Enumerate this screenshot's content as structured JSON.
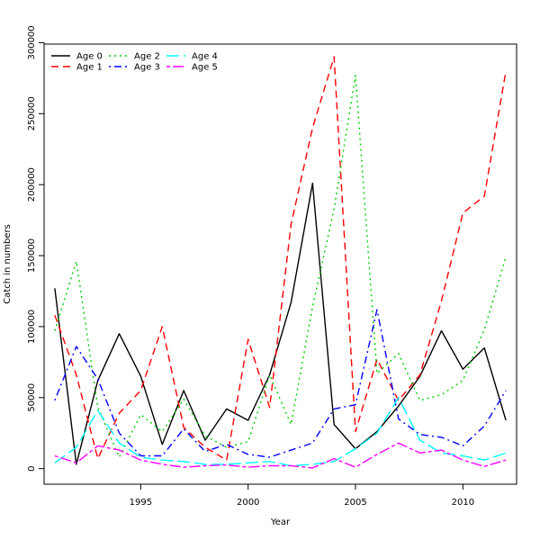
{
  "chart_data": {
    "type": "line",
    "title": "",
    "xlabel": "Year",
    "ylabel": "Catch in numbers",
    "xlim": [
      1990.5,
      2012.5
    ],
    "ylim": [
      -11000,
      299000
    ],
    "x_ticks": [
      1995,
      2000,
      2005,
      2010
    ],
    "y_ticks": [
      0,
      50000,
      100000,
      150000,
      200000,
      250000,
      300000
    ],
    "x_tick_labels": [
      "1995",
      "2000",
      "2005",
      "2010"
    ],
    "y_tick_labels": [
      "0",
      "50000",
      "100000",
      "150000",
      "200000",
      "250000",
      "300000"
    ],
    "grid": false,
    "legend_position": "top-left",
    "x": [
      1991,
      1992,
      1993,
      1994,
      1995,
      1996,
      1997,
      1998,
      1999,
      2000,
      2001,
      2002,
      2003,
      2004,
      2005,
      2006,
      2007,
      2008,
      2009,
      2010,
      2011,
      2012
    ],
    "series": [
      {
        "name": "Age 0",
        "color": "#000000",
        "dash": "solid",
        "values": [
          127000,
          3000,
          62000,
          95000,
          65000,
          17000,
          55000,
          20000,
          42000,
          34000,
          66000,
          117000,
          201000,
          31000,
          14000,
          26000,
          44000,
          65000,
          97000,
          70000,
          85000,
          34000
        ]
      },
      {
        "name": "Age 1",
        "color": "#ff0000",
        "dash": "dashed",
        "values": [
          108000,
          66000,
          7000,
          39000,
          55000,
          100000,
          29000,
          15000,
          6000,
          91000,
          43000,
          172000,
          240000,
          290000,
          26000,
          77000,
          48000,
          66000,
          118000,
          180000,
          192000,
          280000
        ]
      },
      {
        "name": "Age 2",
        "color": "#00cd00",
        "dash": "dotted",
        "values": [
          97000,
          146000,
          43000,
          8000,
          38000,
          26000,
          49000,
          23000,
          15000,
          19000,
          66000,
          31000,
          114000,
          183000,
          277000,
          67000,
          81000,
          48000,
          52000,
          62000,
          98000,
          149000
        ]
      },
      {
        "name": "Age 3",
        "color": "#0000ff",
        "dash": "dotdash",
        "values": [
          48000,
          86000,
          63000,
          25000,
          9000,
          9000,
          28000,
          12000,
          17000,
          10000,
          8000,
          13000,
          18000,
          42000,
          45000,
          112000,
          35000,
          24000,
          22000,
          16000,
          30000,
          55000
        ]
      },
      {
        "name": "Age 4",
        "color": "#00ffff",
        "dash": "longdash",
        "values": [
          4000,
          15000,
          41000,
          18000,
          8000,
          6000,
          5000,
          3000,
          3000,
          4000,
          5000,
          2000,
          3000,
          5000,
          14000,
          25000,
          50000,
          20000,
          11000,
          9000,
          6000,
          11000
        ]
      },
      {
        "name": "Age 5",
        "color": "#ff00ff",
        "dash": "twodash",
        "values": [
          9000,
          4000,
          16000,
          13000,
          6000,
          3000,
          1000,
          2000,
          2500,
          1000,
          2000,
          2000,
          500,
          7000,
          1000,
          10000,
          18000,
          11000,
          13000,
          6000,
          1500,
          6000
        ]
      }
    ]
  }
}
